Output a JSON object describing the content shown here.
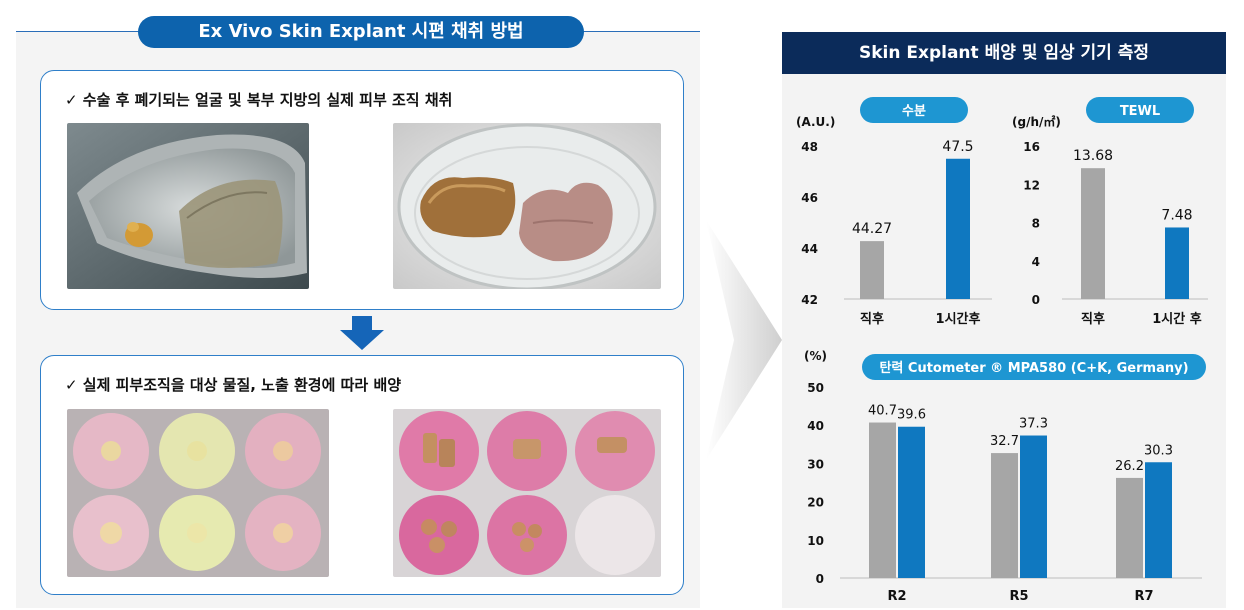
{
  "left_panel": {
    "title": "Ex Vivo Skin Explant 시편 채취 방법",
    "step1": "✓  수술 후 폐기되는 얼굴 및 복부 지방의 실제 피부 조직 채취",
    "step2": "✓  실제 피부조직을 대상 물질, 노출 환경에 따라 배양"
  },
  "right_panel": {
    "title": "Skin Explant 배양 및 임상 기기 측정"
  },
  "colors": {
    "gray": "#a6a6a6",
    "blue": "#0f78c0",
    "pill": "#1e96d2",
    "navy": "#0b2b5a"
  },
  "chart_data": [
    {
      "type": "bar",
      "title": "수분",
      "ylabel": "(A.U.)",
      "categories": [
        "직후",
        "1시간후"
      ],
      "values": [
        44.27,
        47.5
      ],
      "value_labels": [
        "44.27",
        "47.5"
      ],
      "bar_colors": [
        "#a6a6a6",
        "#0f78c0"
      ],
      "ylim": [
        42,
        48
      ],
      "yticks": [
        42,
        44,
        46,
        48
      ]
    },
    {
      "type": "bar",
      "title": "TEWL",
      "ylabel": "(g/h/㎡)",
      "categories": [
        "직후",
        "1시간 후"
      ],
      "values": [
        13.68,
        7.48
      ],
      "value_labels": [
        "13.68",
        "7.48"
      ],
      "bar_colors": [
        "#a6a6a6",
        "#0f78c0"
      ],
      "ylim": [
        0,
        16
      ],
      "yticks": [
        0,
        4,
        8,
        12,
        16
      ]
    },
    {
      "type": "bar",
      "title": "탄력 Cutometer ® MPA580 (C+K, Germany)",
      "ylabel": "(%)",
      "categories": [
        "R2",
        "R5",
        "R7"
      ],
      "series": [
        {
          "values": [
            40.7,
            32.7,
            26.2
          ],
          "labels": [
            "40.7",
            "32.7",
            "26.2"
          ],
          "color": "#a6a6a6"
        },
        {
          "values": [
            39.6,
            37.3,
            30.3
          ],
          "labels": [
            "39.6",
            "37.3",
            "30.3"
          ],
          "color": "#0f78c0"
        }
      ],
      "ylim": [
        0,
        50
      ],
      "yticks": [
        0,
        10,
        20,
        30,
        40,
        50
      ]
    }
  ]
}
